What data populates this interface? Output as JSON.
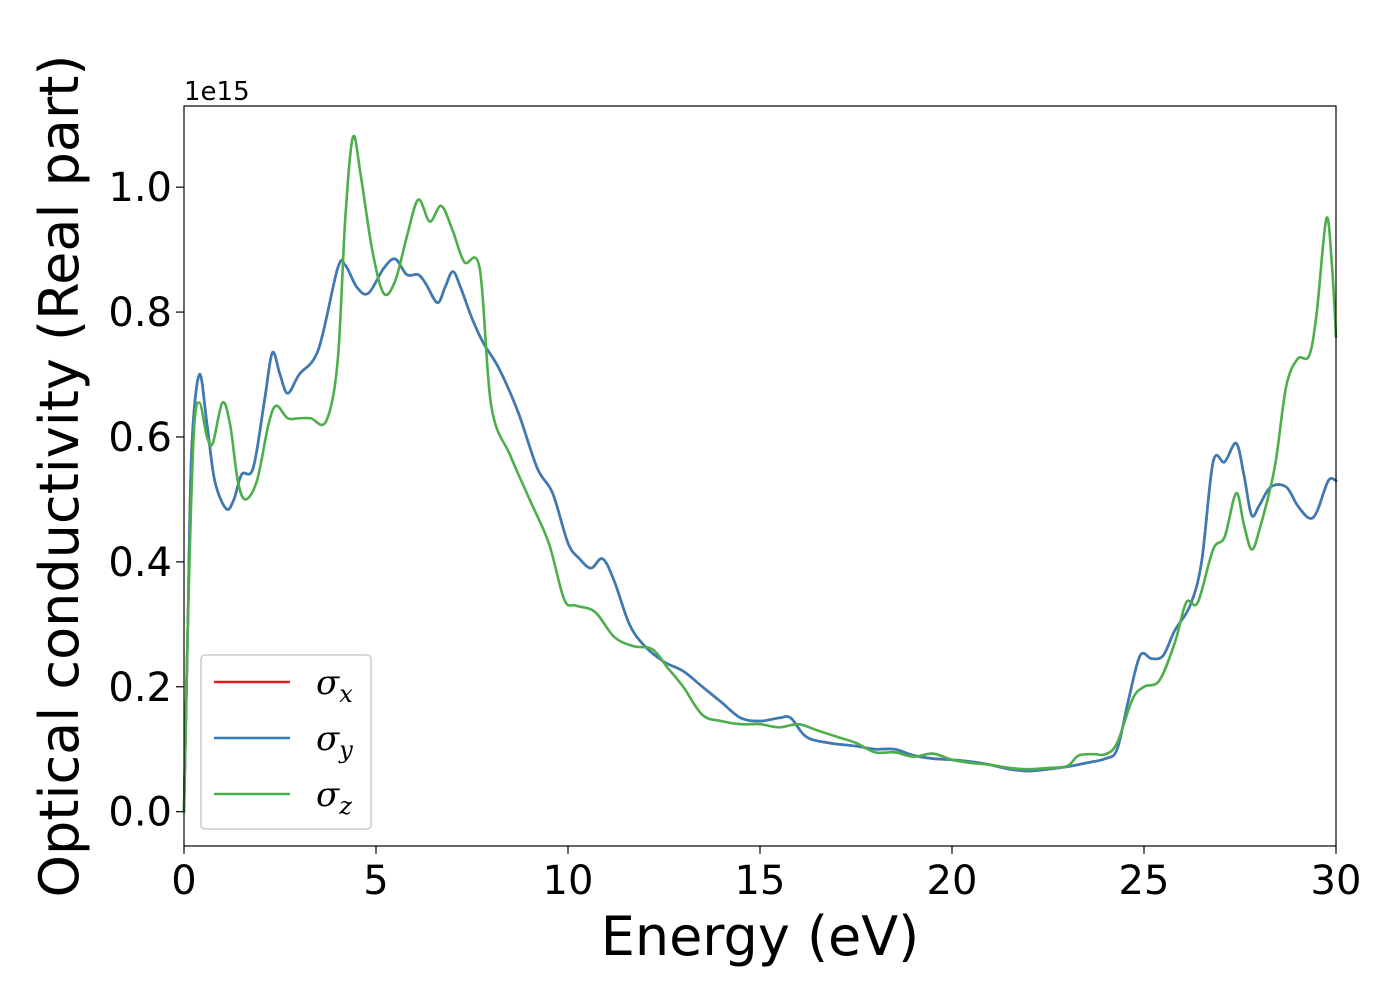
{
  "chart_data": {
    "type": "line",
    "xlabel": "Energy (eV)",
    "ylabel": "Optical conductivity (Real part)",
    "y_offset_label": "1e15",
    "xlim": [
      0,
      30
    ],
    "ylim": [
      -0.055,
      1.13
    ],
    "x_ticks": [
      0,
      5,
      10,
      15,
      20,
      25,
      30
    ],
    "y_ticks": [
      0.0,
      0.2,
      0.4,
      0.6,
      0.8,
      1.0
    ],
    "x_tick_labels": [
      "0",
      "5",
      "10",
      "15",
      "20",
      "25",
      "30"
    ],
    "y_tick_labels": [
      "0.0",
      "0.2",
      "0.4",
      "0.6",
      "0.8",
      "1.0"
    ],
    "grid": false,
    "legend_position": "lower-left",
    "legend": [
      {
        "symbol": "σ",
        "sub": "x"
      },
      {
        "symbol": "σ",
        "sub": "y"
      },
      {
        "symbol": "σ",
        "sub": "z"
      }
    ],
    "series": [
      {
        "color": "#e41a1c",
        "points": [
          [
            0,
            0.0
          ],
          [
            0.1,
            0.3
          ],
          [
            0.2,
            0.58
          ],
          [
            0.4,
            0.7
          ],
          [
            0.6,
            0.62
          ],
          [
            0.8,
            0.53
          ],
          [
            1.1,
            0.485
          ],
          [
            1.3,
            0.5
          ],
          [
            1.5,
            0.54
          ],
          [
            1.8,
            0.55
          ],
          [
            2.1,
            0.66
          ],
          [
            2.3,
            0.735
          ],
          [
            2.5,
            0.7
          ],
          [
            2.7,
            0.67
          ],
          [
            3.0,
            0.7
          ],
          [
            3.5,
            0.74
          ],
          [
            4.0,
            0.87
          ],
          [
            4.2,
            0.875
          ],
          [
            4.5,
            0.84
          ],
          [
            4.8,
            0.83
          ],
          [
            5.2,
            0.87
          ],
          [
            5.5,
            0.885
          ],
          [
            5.8,
            0.86
          ],
          [
            6.1,
            0.86
          ],
          [
            6.3,
            0.845
          ],
          [
            6.6,
            0.815
          ],
          [
            6.8,
            0.84
          ],
          [
            7.0,
            0.865
          ],
          [
            7.2,
            0.84
          ],
          [
            7.5,
            0.79
          ],
          [
            7.8,
            0.75
          ],
          [
            8.2,
            0.71
          ],
          [
            8.7,
            0.64
          ],
          [
            9.2,
            0.55
          ],
          [
            9.6,
            0.51
          ],
          [
            10.0,
            0.43
          ],
          [
            10.3,
            0.405
          ],
          [
            10.6,
            0.39
          ],
          [
            10.9,
            0.405
          ],
          [
            11.2,
            0.37
          ],
          [
            11.6,
            0.3
          ],
          [
            12.0,
            0.265
          ],
          [
            12.5,
            0.24
          ],
          [
            13.0,
            0.225
          ],
          [
            13.5,
            0.2
          ],
          [
            14.0,
            0.175
          ],
          [
            14.5,
            0.15
          ],
          [
            15.0,
            0.145
          ],
          [
            15.5,
            0.15
          ],
          [
            15.8,
            0.15
          ],
          [
            16.2,
            0.12
          ],
          [
            16.8,
            0.11
          ],
          [
            17.5,
            0.105
          ],
          [
            18.0,
            0.1
          ],
          [
            18.5,
            0.1
          ],
          [
            19.0,
            0.09
          ],
          [
            19.5,
            0.085
          ],
          [
            20.0,
            0.083
          ],
          [
            20.5,
            0.08
          ],
          [
            21.0,
            0.075
          ],
          [
            21.5,
            0.068
          ],
          [
            22.0,
            0.065
          ],
          [
            22.5,
            0.068
          ],
          [
            23.0,
            0.072
          ],
          [
            23.5,
            0.078
          ],
          [
            24.0,
            0.085
          ],
          [
            24.3,
            0.1
          ],
          [
            24.6,
            0.18
          ],
          [
            24.9,
            0.25
          ],
          [
            25.2,
            0.245
          ],
          [
            25.5,
            0.25
          ],
          [
            25.8,
            0.29
          ],
          [
            26.2,
            0.33
          ],
          [
            26.5,
            0.4
          ],
          [
            26.8,
            0.56
          ],
          [
            27.1,
            0.56
          ],
          [
            27.4,
            0.59
          ],
          [
            27.6,
            0.54
          ],
          [
            27.8,
            0.475
          ],
          [
            28.0,
            0.49
          ],
          [
            28.3,
            0.52
          ],
          [
            28.7,
            0.52
          ],
          [
            29.0,
            0.49
          ],
          [
            29.3,
            0.47
          ],
          [
            29.5,
            0.48
          ],
          [
            29.8,
            0.53
          ],
          [
            30.0,
            0.53
          ]
        ]
      },
      {
        "color": "#377eb8",
        "points": [
          [
            0,
            0.0
          ],
          [
            0.1,
            0.3
          ],
          [
            0.2,
            0.58
          ],
          [
            0.4,
            0.7
          ],
          [
            0.6,
            0.62
          ],
          [
            0.8,
            0.53
          ],
          [
            1.1,
            0.485
          ],
          [
            1.3,
            0.5
          ],
          [
            1.5,
            0.54
          ],
          [
            1.8,
            0.55
          ],
          [
            2.1,
            0.66
          ],
          [
            2.3,
            0.735
          ],
          [
            2.5,
            0.7
          ],
          [
            2.7,
            0.67
          ],
          [
            3.0,
            0.7
          ],
          [
            3.5,
            0.74
          ],
          [
            4.0,
            0.87
          ],
          [
            4.2,
            0.875
          ],
          [
            4.5,
            0.84
          ],
          [
            4.8,
            0.83
          ],
          [
            5.2,
            0.87
          ],
          [
            5.5,
            0.885
          ],
          [
            5.8,
            0.86
          ],
          [
            6.1,
            0.86
          ],
          [
            6.3,
            0.845
          ],
          [
            6.6,
            0.815
          ],
          [
            6.8,
            0.84
          ],
          [
            7.0,
            0.865
          ],
          [
            7.2,
            0.84
          ],
          [
            7.5,
            0.79
          ],
          [
            7.8,
            0.75
          ],
          [
            8.2,
            0.71
          ],
          [
            8.7,
            0.64
          ],
          [
            9.2,
            0.55
          ],
          [
            9.6,
            0.51
          ],
          [
            10.0,
            0.43
          ],
          [
            10.3,
            0.405
          ],
          [
            10.6,
            0.39
          ],
          [
            10.9,
            0.405
          ],
          [
            11.2,
            0.37
          ],
          [
            11.6,
            0.3
          ],
          [
            12.0,
            0.265
          ],
          [
            12.5,
            0.24
          ],
          [
            13.0,
            0.225
          ],
          [
            13.5,
            0.2
          ],
          [
            14.0,
            0.175
          ],
          [
            14.5,
            0.15
          ],
          [
            15.0,
            0.145
          ],
          [
            15.5,
            0.15
          ],
          [
            15.8,
            0.15
          ],
          [
            16.2,
            0.12
          ],
          [
            16.8,
            0.11
          ],
          [
            17.5,
            0.105
          ],
          [
            18.0,
            0.1
          ],
          [
            18.5,
            0.1
          ],
          [
            19.0,
            0.09
          ],
          [
            19.5,
            0.085
          ],
          [
            20.0,
            0.083
          ],
          [
            20.5,
            0.08
          ],
          [
            21.0,
            0.075
          ],
          [
            21.5,
            0.068
          ],
          [
            22.0,
            0.065
          ],
          [
            22.5,
            0.068
          ],
          [
            23.0,
            0.072
          ],
          [
            23.5,
            0.078
          ],
          [
            24.0,
            0.085
          ],
          [
            24.3,
            0.1
          ],
          [
            24.6,
            0.18
          ],
          [
            24.9,
            0.25
          ],
          [
            25.2,
            0.245
          ],
          [
            25.5,
            0.25
          ],
          [
            25.8,
            0.29
          ],
          [
            26.2,
            0.33
          ],
          [
            26.5,
            0.4
          ],
          [
            26.8,
            0.56
          ],
          [
            27.1,
            0.56
          ],
          [
            27.4,
            0.59
          ],
          [
            27.6,
            0.54
          ],
          [
            27.8,
            0.475
          ],
          [
            28.0,
            0.49
          ],
          [
            28.3,
            0.52
          ],
          [
            28.7,
            0.52
          ],
          [
            29.0,
            0.49
          ],
          [
            29.3,
            0.47
          ],
          [
            29.5,
            0.48
          ],
          [
            29.8,
            0.53
          ],
          [
            30.0,
            0.53
          ]
        ]
      },
      {
        "color": "#4daf4a",
        "points": [
          [
            0,
            0.0
          ],
          [
            0.1,
            0.3
          ],
          [
            0.25,
            0.6
          ],
          [
            0.4,
            0.655
          ],
          [
            0.6,
            0.6
          ],
          [
            0.75,
            0.59
          ],
          [
            1.0,
            0.655
          ],
          [
            1.2,
            0.62
          ],
          [
            1.4,
            0.53
          ],
          [
            1.6,
            0.5
          ],
          [
            1.9,
            0.53
          ],
          [
            2.2,
            0.62
          ],
          [
            2.4,
            0.65
          ],
          [
            2.7,
            0.63
          ],
          [
            3.0,
            0.63
          ],
          [
            3.3,
            0.63
          ],
          [
            3.7,
            0.625
          ],
          [
            4.0,
            0.72
          ],
          [
            4.2,
            0.95
          ],
          [
            4.4,
            1.08
          ],
          [
            4.6,
            1.02
          ],
          [
            4.9,
            0.9
          ],
          [
            5.2,
            0.83
          ],
          [
            5.5,
            0.85
          ],
          [
            5.8,
            0.92
          ],
          [
            6.1,
            0.98
          ],
          [
            6.4,
            0.945
          ],
          [
            6.7,
            0.97
          ],
          [
            7.0,
            0.93
          ],
          [
            7.3,
            0.88
          ],
          [
            7.7,
            0.87
          ],
          [
            8.0,
            0.65
          ],
          [
            8.5,
            0.57
          ],
          [
            9.0,
            0.5
          ],
          [
            9.5,
            0.43
          ],
          [
            9.9,
            0.34
          ],
          [
            10.2,
            0.33
          ],
          [
            10.7,
            0.32
          ],
          [
            11.2,
            0.28
          ],
          [
            11.7,
            0.265
          ],
          [
            12.2,
            0.26
          ],
          [
            12.6,
            0.23
          ],
          [
            13.0,
            0.2
          ],
          [
            13.5,
            0.155
          ],
          [
            14.0,
            0.145
          ],
          [
            14.5,
            0.14
          ],
          [
            15.0,
            0.14
          ],
          [
            15.5,
            0.135
          ],
          [
            16.0,
            0.14
          ],
          [
            16.5,
            0.13
          ],
          [
            17.0,
            0.12
          ],
          [
            17.5,
            0.11
          ],
          [
            18.0,
            0.095
          ],
          [
            18.5,
            0.095
          ],
          [
            19.0,
            0.088
          ],
          [
            19.5,
            0.093
          ],
          [
            20.0,
            0.083
          ],
          [
            20.5,
            0.078
          ],
          [
            21.0,
            0.075
          ],
          [
            21.5,
            0.07
          ],
          [
            22.0,
            0.068
          ],
          [
            22.5,
            0.07
          ],
          [
            23.0,
            0.073
          ],
          [
            23.3,
            0.09
          ],
          [
            23.7,
            0.092
          ],
          [
            24.0,
            0.092
          ],
          [
            24.3,
            0.11
          ],
          [
            24.7,
            0.18
          ],
          [
            25.0,
            0.2
          ],
          [
            25.4,
            0.21
          ],
          [
            25.8,
            0.27
          ],
          [
            26.1,
            0.335
          ],
          [
            26.4,
            0.335
          ],
          [
            26.8,
            0.42
          ],
          [
            27.1,
            0.44
          ],
          [
            27.4,
            0.51
          ],
          [
            27.6,
            0.46
          ],
          [
            27.8,
            0.42
          ],
          [
            28.0,
            0.45
          ],
          [
            28.4,
            0.55
          ],
          [
            28.7,
            0.68
          ],
          [
            29.0,
            0.725
          ],
          [
            29.3,
            0.73
          ],
          [
            29.5,
            0.8
          ],
          [
            29.75,
            0.95
          ],
          [
            29.9,
            0.87
          ],
          [
            30.0,
            0.76
          ]
        ]
      }
    ]
  }
}
